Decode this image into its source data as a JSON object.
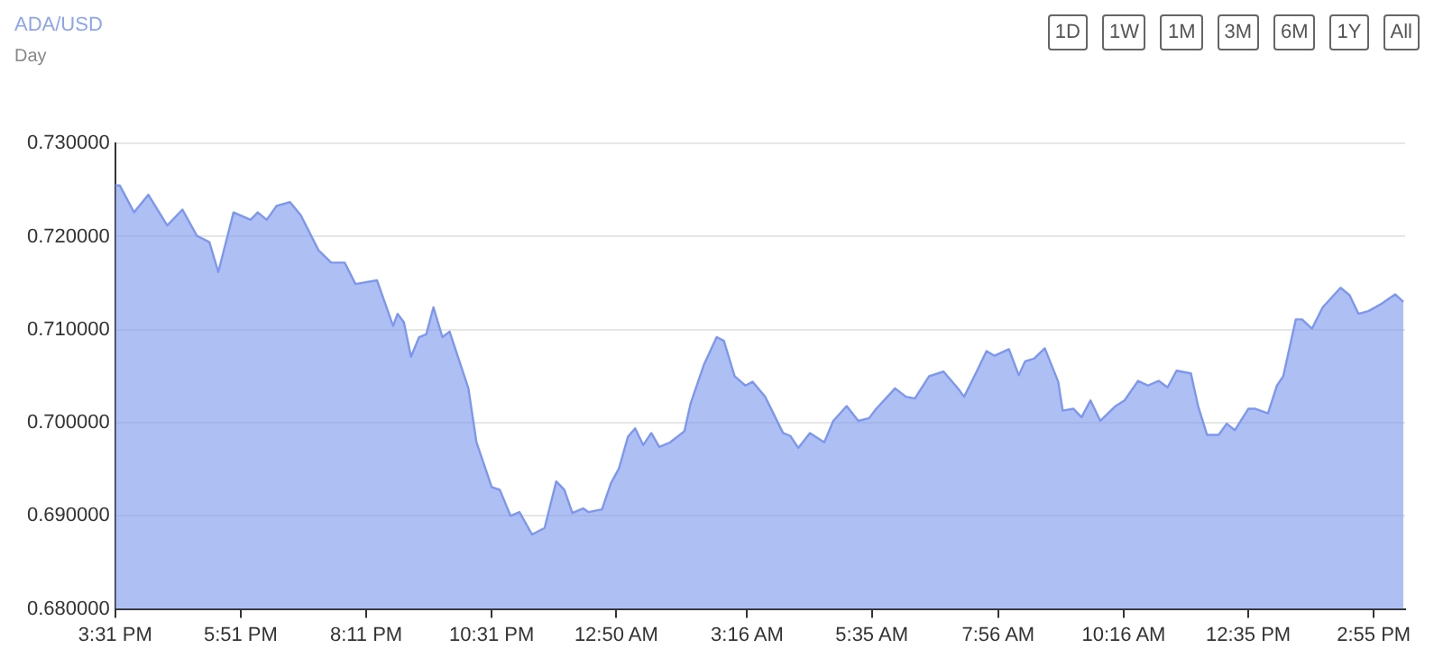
{
  "chart_data": {
    "type": "area",
    "title": "ADA/USD",
    "subtitle": "Day",
    "annotations": [
      "1D",
      "1W",
      "1M",
      "3M",
      "6M",
      "1Y",
      "All"
    ],
    "series": [
      {
        "color": "#7d97ee",
        "x": [
          "--01-01T15:31",
          "--01-01T15:36",
          "--01-01T15:52",
          "--01-01T16:08",
          "--01-01T16:29",
          "--01-01T16:46",
          "--01-01T17:02",
          "--01-01T17:16",
          "--01-01T17:26",
          "--01-01T17:43",
          "--01-01T18:02",
          "--01-01T18:10",
          "--01-01T18:20",
          "--01-01T18:31",
          "--01-01T18:46",
          "--01-01T18:58",
          "--01-01T19:18",
          "--01-01T19:32",
          "--01-01T19:47",
          "--01-01T19:59",
          "--01-01T20:23",
          "--01-01T20:41",
          "--01-01T20:46",
          "--01-01T20:53",
          "--01-01T21:01",
          "--01-01T21:10",
          "--01-01T21:18",
          "--01-01T21:26",
          "--01-01T21:36",
          "--01-01T21:44",
          "--01-01T22:05",
          "--01-01T22:14",
          "--01-01T22:31",
          "--01-01T22:40",
          "--01-01T22:52",
          "--01-01T23:02",
          "--01-01T23:16",
          "--01-01T23:30",
          "--01-01T23:43",
          "--01-01T23:52",
          "--01-02T00:01",
          "--01-02T00:13",
          "--01-02T00:19",
          "--01-02T00:34",
          "--01-02T00:44",
          "--01-02T00:53",
          "--01-02T01:03",
          "--01-02T01:11",
          "--01-02T01:20",
          "--01-02T01:29",
          "--01-02T01:38",
          "--01-02T01:50",
          "--01-02T02:06",
          "--01-02T02:13",
          "--01-02T02:28",
          "--01-02T02:42",
          "--01-02T02:50",
          "--01-02T03:02",
          "--01-02T03:14",
          "--01-02T03:22",
          "--01-02T03:36",
          "--01-02T03:56",
          "--01-02T04:04",
          "--01-02T04:13",
          "--01-02T04:26",
          "--01-02T04:42",
          "--01-02T04:52",
          "--01-02T05:07",
          "--01-02T05:20",
          "--01-02T05:32",
          "--01-02T05:40",
          "--01-02T06:01",
          "--01-02T06:13",
          "--01-02T06:23",
          "--01-02T06:39",
          "--01-02T06:55",
          "--01-02T07:11",
          "--01-02T07:18",
          "--01-02T07:31",
          "--01-02T07:43",
          "--01-02T07:52",
          "--01-02T08:08",
          "--01-02T08:19",
          "--01-02T08:26",
          "--01-02T08:36",
          "--01-02T08:48",
          "--01-02T09:03",
          "--01-02T09:08",
          "--01-02T09:20",
          "--01-02T09:29",
          "--01-02T09:39",
          "--01-02T09:50",
          "--01-02T10:07",
          "--01-02T10:17",
          "--01-02T10:32",
          "--01-02T10:43",
          "--01-02T10:55",
          "--01-02T11:05",
          "--01-02T11:15",
          "--01-02T11:31",
          "--01-02T11:39",
          "--01-02T11:49",
          "--01-02T12:02",
          "--01-02T12:11",
          "--01-02T12:20",
          "--01-02T12:35",
          "--01-02T12:43",
          "--01-02T12:57",
          "--01-02T13:07",
          "--01-02T13:14",
          "--01-02T13:28",
          "--01-02T13:35",
          "--01-02T13:46",
          "--01-02T13:58",
          "--01-02T14:18",
          "--01-02T14:28",
          "--01-02T14:38",
          "--01-02T14:49",
          "--01-02T15:04",
          "--01-02T15:19",
          "--01-02T15:28"
        ],
        "values": [
          0.7255,
          0.7255,
          0.7226,
          0.7245,
          0.7212,
          0.7229,
          0.7201,
          0.7194,
          0.7162,
          0.7226,
          0.7218,
          0.7226,
          0.7218,
          0.7233,
          0.7237,
          0.7223,
          0.7185,
          0.7172,
          0.7172,
          0.7149,
          0.7153,
          0.7104,
          0.7117,
          0.7108,
          0.7071,
          0.7092,
          0.7095,
          0.7124,
          0.7092,
          0.7098,
          0.7037,
          0.6979,
          0.6931,
          0.6928,
          0.69,
          0.6904,
          0.688,
          0.6887,
          0.6937,
          0.6928,
          0.6903,
          0.6908,
          0.6904,
          0.6907,
          0.6935,
          0.6951,
          0.6985,
          0.6994,
          0.6976,
          0.6989,
          0.6974,
          0.6979,
          0.6991,
          0.7021,
          0.7063,
          0.7092,
          0.7088,
          0.705,
          0.704,
          0.7044,
          0.7028,
          0.6989,
          0.6986,
          0.6973,
          0.6989,
          0.6979,
          0.7002,
          0.7018,
          0.7002,
          0.7005,
          0.7015,
          0.7037,
          0.7028,
          0.7026,
          0.705,
          0.7055,
          0.7037,
          0.7028,
          0.7053,
          0.7077,
          0.7072,
          0.7079,
          0.7051,
          0.7066,
          0.7069,
          0.708,
          0.7044,
          0.7013,
          0.7015,
          0.7006,
          0.7024,
          0.7002,
          0.7018,
          0.7024,
          0.7045,
          0.704,
          0.7045,
          0.7038,
          0.7056,
          0.7053,
          0.7018,
          0.6987,
          0.6987,
          0.6999,
          0.6992,
          0.7015,
          0.7015,
          0.701,
          0.704,
          0.705,
          0.7111,
          0.7111,
          0.7101,
          0.7124,
          0.7145,
          0.7137,
          0.7117,
          0.712,
          0.7128,
          0.7138,
          0.713
        ]
      }
    ],
    "xlim": [
      "--01-01T15:31",
      "--01-02T15:30"
    ],
    "xticks": [
      {
        "value": "--01-01T15:31",
        "label": "3:31 PM"
      },
      {
        "value": "--01-01T17:51",
        "label": "5:51 PM"
      },
      {
        "value": "--01-01T20:11",
        "label": "8:11 PM"
      },
      {
        "value": "--01-01T22:31",
        "label": "10:31 PM"
      },
      {
        "value": "--01-02T00:50",
        "label": "12:50 AM"
      },
      {
        "value": "--01-02T03:16",
        "label": "3:16 AM"
      },
      {
        "value": "--01-02T05:35",
        "label": "5:35 AM"
      },
      {
        "value": "--01-02T07:56",
        "label": "7:56 AM"
      },
      {
        "value": "--01-02T10:16",
        "label": "10:16 AM"
      },
      {
        "value": "--01-02T12:35",
        "label": "12:35 PM"
      },
      {
        "value": "--01-02T14:55",
        "label": "2:55 PM"
      }
    ],
    "ylim": [
      0.68,
      0.73
    ],
    "yticks": [
      {
        "value": 0.68,
        "label": "0.680000"
      },
      {
        "value": 0.69,
        "label": "0.690000"
      },
      {
        "value": 0.7,
        "label": "0.700000"
      },
      {
        "value": 0.71,
        "label": "0.710000"
      },
      {
        "value": 0.72,
        "label": "0.720000"
      },
      {
        "value": 0.73,
        "label": "0.730000"
      }
    ],
    "grid": "y",
    "legend": false,
    "marker": "none",
    "line_style": "solid"
  }
}
